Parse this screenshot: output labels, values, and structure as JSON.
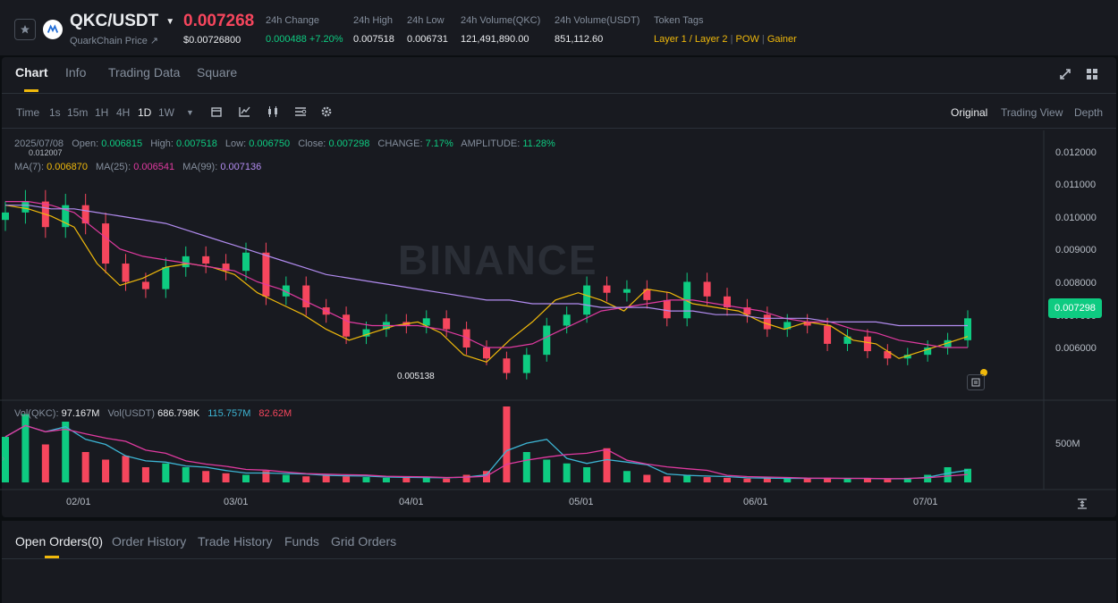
{
  "ticker": {
    "pair": "QKC/USDT",
    "subtitle": "QuarkChain Price ↗",
    "price": "0.007268",
    "price_usd": "$0.00726800",
    "stats": [
      {
        "label": "24h Change",
        "value": "0.000488 +7.20%"
      },
      {
        "label": "24h High",
        "value": "0.007518"
      },
      {
        "label": "24h Low",
        "value": "0.006731"
      },
      {
        "label": "24h Volume(QKC)",
        "value": "121,491,890.00"
      },
      {
        "label": "24h Volume(USDT)",
        "value": "851,112.60"
      }
    ],
    "token_tags_label": "Token Tags",
    "token_tags": [
      "Layer 1 / Layer 2",
      "POW",
      "Gainer"
    ]
  },
  "tabs": [
    "Chart",
    "Info",
    "Trading Data",
    "Square"
  ],
  "toolbar": {
    "intervals": [
      "Time",
      "1s",
      "15m",
      "1H",
      "4H",
      "1D",
      "1W"
    ],
    "active_interval": "1D",
    "views": [
      "Original",
      "Trading View",
      "Depth"
    ]
  },
  "legend": {
    "date": "2025/07/08",
    "open_label": "Open:",
    "open": "0.006815",
    "high_label": "High:",
    "high": "0.007518",
    "low_label": "Low:",
    "low": "0.006750",
    "close_label": "Close:",
    "close": "0.007298",
    "change_label": "CHANGE:",
    "change": "7.17%",
    "amp_label": "AMPLITUDE:",
    "amp": "11.28%",
    "ma7_label": "MA(7):",
    "ma7": "0.006870",
    "ma25_label": "MA(25):",
    "ma25": "0.006541",
    "ma99_label": "MA(99):",
    "ma99": "0.007136",
    "vol_label": "Vol(QKC):",
    "vol_qkc": "97.167M",
    "vol_usdt_label": "Vol(USDT)",
    "vol_usdt": "686.798K",
    "vol_ma1": "115.757M",
    "vol_ma2": "82.62M"
  },
  "chart_labels": {
    "max_price": "0.012007",
    "min_price": "0.005138",
    "last_price": "0.007298",
    "watermark": "BINANCE",
    "vol_tick": "500M"
  },
  "orders_tabs": [
    "Open Orders(0)",
    "Order History",
    "Trade History",
    "Funds",
    "Grid Orders"
  ],
  "chart_data": {
    "type": "line",
    "y_ticks": [
      "0.012000",
      "0.011000",
      "0.010000",
      "0.009000",
      "0.008000",
      "0.007000",
      "0.006000"
    ],
    "ylim": [
      0.0053,
      0.0124
    ],
    "x_ticks": [
      "02/01",
      "03/01",
      "04/01",
      "05/01",
      "06/01",
      "07/01"
    ],
    "series": [
      {
        "name": "MA(7)",
        "color": "#f0b90b",
        "values": [
          0.0104,
          0.0103,
          0.0101,
          0.0098,
          0.0088,
          0.0082,
          0.0084,
          0.0087,
          0.0088,
          0.0087,
          0.0085,
          0.008,
          0.0077,
          0.0074,
          0.007,
          0.0067,
          0.0069,
          0.0071,
          0.0072,
          0.0069,
          0.0063,
          0.0061,
          0.0067,
          0.0072,
          0.0078,
          0.008,
          0.0078,
          0.0075,
          0.0081,
          0.008,
          0.0077,
          0.0076,
          0.0075,
          0.0072,
          0.007,
          0.0072,
          0.0071,
          0.0067,
          0.0066,
          0.0062,
          0.0064,
          0.0066,
          0.0068
        ]
      },
      {
        "name": "MA(25)",
        "color": "#e03aa0",
        "values": [
          0.0105,
          0.0105,
          0.0104,
          0.0102,
          0.0097,
          0.0092,
          0.009,
          0.0089,
          0.0088,
          0.0087,
          0.0086,
          0.0083,
          0.0081,
          0.0078,
          0.0075,
          0.0072,
          0.0071,
          0.0071,
          0.0071,
          0.007,
          0.0068,
          0.0065,
          0.0065,
          0.0066,
          0.0069,
          0.0072,
          0.0075,
          0.0076,
          0.0077,
          0.0078,
          0.0078,
          0.0077,
          0.0076,
          0.0075,
          0.0073,
          0.0072,
          0.0072,
          0.007,
          0.0069,
          0.0067,
          0.0066,
          0.0065,
          0.0065
        ]
      },
      {
        "name": "MA(99)",
        "color": "#b28cf0",
        "values": [
          0.0104,
          0.0104,
          0.0103,
          0.0103,
          0.0102,
          0.0101,
          0.01,
          0.0099,
          0.0097,
          0.0095,
          0.0093,
          0.0091,
          0.0089,
          0.0087,
          0.0085,
          0.0084,
          0.0083,
          0.0082,
          0.0081,
          0.008,
          0.0079,
          0.0078,
          0.0078,
          0.0077,
          0.0077,
          0.0077,
          0.0076,
          0.0076,
          0.0076,
          0.0075,
          0.0075,
          0.0074,
          0.0074,
          0.0073,
          0.0073,
          0.0073,
          0.0072,
          0.0072,
          0.0072,
          0.0071,
          0.0071,
          0.0071,
          0.0071
        ]
      }
    ],
    "candles_close": [
      0.0102,
      0.0105,
      0.0098,
      0.0104,
      0.0099,
      0.0088,
      0.0083,
      0.0081,
      0.0087,
      0.009,
      0.0088,
      0.0086,
      0.0091,
      0.0079,
      0.0082,
      0.0076,
      0.0074,
      0.0068,
      0.007,
      0.0072,
      0.0071,
      0.0073,
      0.007,
      0.0065,
      0.0062,
      0.0058,
      0.0063,
      0.0071,
      0.0074,
      0.0082,
      0.008,
      0.0081,
      0.0078,
      0.0073,
      0.0083,
      0.0079,
      0.0076,
      0.0074,
      0.007,
      0.0072,
      0.0071,
      0.0066,
      0.0068,
      0.0064,
      0.0062,
      0.0063,
      0.0065,
      0.0067,
      0.0073
    ],
    "volumes_rel": [
      0.6,
      0.9,
      0.5,
      0.8,
      0.4,
      0.3,
      0.35,
      0.2,
      0.25,
      0.2,
      0.15,
      0.12,
      0.1,
      0.15,
      0.1,
      0.08,
      0.1,
      0.08,
      0.07,
      0.06,
      0.07,
      0.06,
      0.05,
      0.1,
      0.15,
      1.0,
      0.4,
      0.3,
      0.25,
      0.2,
      0.45,
      0.15,
      0.1,
      0.08,
      0.1,
      0.07,
      0.06,
      0.05,
      0.06,
      0.05,
      0.05,
      0.06,
      0.05,
      0.05,
      0.04,
      0.06,
      0.1,
      0.2,
      0.18
    ]
  }
}
